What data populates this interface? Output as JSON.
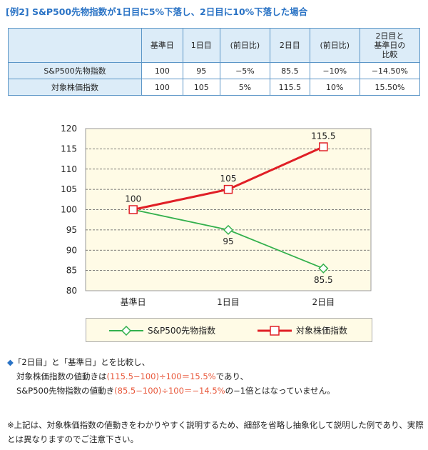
{
  "title": "[例2] S&P500先物指数が1日目に5%下落し、2日目に10%下落した場合",
  "table": {
    "headers": [
      "",
      "基準日",
      "1日目",
      "(前日比)",
      "2日目",
      "(前日比)",
      "2日目と\n基準日の\n比較"
    ],
    "rows": [
      {
        "label": "S&P500先物指数",
        "cells": [
          "100",
          "95",
          "−5%",
          "85.5",
          "−10%",
          "−14.50%"
        ]
      },
      {
        "label": "対象株価指数",
        "cells": [
          "100",
          "105",
          "5%",
          "115.5",
          "10%",
          "15.50%"
        ]
      }
    ]
  },
  "chart_data": {
    "type": "line",
    "categories": [
      "基準日",
      "1日目",
      "2日目"
    ],
    "ylim": [
      80,
      120
    ],
    "yticks": [
      80,
      85,
      90,
      95,
      100,
      105,
      110,
      115,
      120
    ],
    "grid": true,
    "legend_position": "bottom",
    "series": [
      {
        "name": "S&P500先物指数",
        "values": [
          100,
          95,
          85.5
        ],
        "labels": [
          "100",
          "95",
          "85.5"
        ],
        "color": "#33b04c",
        "marker": "diamond"
      },
      {
        "name": "対象株価指数",
        "values": [
          100,
          105,
          115.5
        ],
        "labels": [
          "100",
          "105",
          "115.5"
        ],
        "color": "#e01f26",
        "marker": "square"
      }
    ]
  },
  "notes": {
    "line1": "「2日目」と「基準日」とを比較し、",
    "line2_pre": "対象株価指数の値動きは",
    "line2_hl": "(115.5−100)÷100＝15.5%",
    "line2_post": "であり、",
    "line3_pre": "S&P500先物指数の値動き",
    "line3_hl": "(85.5−100)÷100＝−14.5%",
    "line3_post": "の−1倍とはなっていません。",
    "footnote": "※上記は、対象株価指数の値動きをわかりやすく説明するため、細部を省略し抽象化して説明した例であり、実際とは異なりますのでご注意下さい。"
  },
  "colors": {
    "accent": "#2a73c5",
    "highlight": "#e8573a",
    "plot_bg": "#fffbe6"
  }
}
